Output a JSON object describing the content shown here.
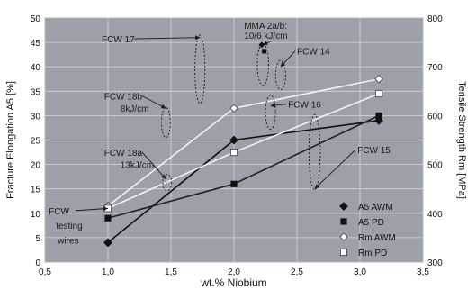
{
  "chart_data": {
    "type": "line",
    "xlabel": "wt.% Niobium",
    "ylabel": "Fracture Elongation A5 [%]",
    "y2label": "Tensile Strength Rm [MPa]",
    "xlim": [
      0.5,
      3.5
    ],
    "ylim": [
      0,
      50
    ],
    "y2lim": [
      300,
      800
    ],
    "x_ticks": [
      "0,5",
      "1,0",
      "1,5",
      "2,0",
      "2,5",
      "3,0",
      "3,5"
    ],
    "x_tick_values": [
      0.5,
      1.0,
      1.5,
      2.0,
      2.5,
      3.0,
      3.5
    ],
    "y_ticks": [
      "0",
      "5",
      "10",
      "15",
      "20",
      "25",
      "30",
      "35",
      "40",
      "45",
      "50"
    ],
    "y_tick_values": [
      0,
      5,
      10,
      15,
      20,
      25,
      30,
      35,
      40,
      45,
      50
    ],
    "y2_ticks": [
      "300",
      "400",
      "500",
      "600",
      "700",
      "800"
    ],
    "y2_tick_values": [
      300,
      400,
      500,
      600,
      700,
      800
    ],
    "grid": true,
    "legend_position": "bottom-right",
    "colors": {
      "plot_bg": "#9da0a8",
      "grid": "#d4d6da",
      "awm_line": "#111111",
      "pd_line": "#222222",
      "rm_line": "#f2f2f2",
      "annotation": "#1a1a1a"
    },
    "series": [
      {
        "name": "A5  AWM",
        "axis": "left",
        "marker": "diamond-filled",
        "x": [
          1.0,
          2.0,
          3.15
        ],
        "y": [
          4,
          25,
          29
        ]
      },
      {
        "name": "A5  PD",
        "axis": "left",
        "marker": "square-filled",
        "x": [
          1.0,
          2.0,
          3.15
        ],
        "y": [
          9,
          16,
          30
        ]
      },
      {
        "name": "Rm  AWM",
        "axis": "right",
        "marker": "diamond-open",
        "x": [
          1.0,
          2.0,
          3.15
        ],
        "y": [
          415,
          615,
          675
        ]
      },
      {
        "name": "Rm  PD",
        "axis": "right",
        "marker": "square-open",
        "x": [
          1.0,
          2.0,
          3.15
        ],
        "y": [
          410,
          525,
          645
        ]
      }
    ],
    "mma_markers": [
      {
        "x": 2.22,
        "y": 44.5,
        "shape": "diamond"
      },
      {
        "x": 2.24,
        "y": 43.2,
        "shape": "square"
      }
    ],
    "annotations": [
      {
        "id": "fcw-17",
        "text": "FCW 17",
        "x": 0.95,
        "y": 45.0,
        "ellipse": {
          "cx": 1.73,
          "cy": 39.5,
          "rx": 0.04,
          "ry": 7.0
        },
        "arrow_to": [
          1.73,
          46
        ]
      },
      {
        "id": "mma",
        "text": "MMA 2a/b:",
        "text2": "10/6 kJ/cm",
        "x": 2.08,
        "y": 47.8,
        "y2": 45.8,
        "ellipse": {
          "cx": 2.23,
          "cy": 40.5,
          "rx": 0.045,
          "ry": 4.3
        },
        "arrow_to": [
          2.23,
          44.5
        ]
      },
      {
        "id": "fcw-14",
        "text": "FCW 14",
        "x": 2.5,
        "y": 42.5,
        "ellipse": {
          "cx": 2.37,
          "cy": 38.3,
          "rx": 0.04,
          "ry": 3.0
        },
        "arrow_to": [
          2.37,
          40
        ]
      },
      {
        "id": "fcw-18b",
        "text": "FCW 18b",
        "text2": "8kJ/cm",
        "x": 0.97,
        "y": 33.3,
        "y2": 30.8,
        "ellipse": {
          "cx": 1.46,
          "cy": 28.6,
          "rx": 0.035,
          "ry": 3.1
        },
        "arrow_to": [
          1.46,
          31.5
        ]
      },
      {
        "id": "fcw-16",
        "text": "FCW 16",
        "x": 2.43,
        "y": 31.6,
        "ellipse": {
          "cx": 2.29,
          "cy": 30.7,
          "rx": 0.04,
          "ry": 3.5
        },
        "arrow_to": [
          2.29,
          32
        ]
      },
      {
        "id": "fcw-18a",
        "text": "FCW 18a",
        "text2": "13kJ/cm",
        "x": 0.97,
        "y": 21.8,
        "y2": 19.3,
        "ellipse": {
          "cx": 1.47,
          "cy": 16.3,
          "rx": 0.035,
          "ry": 1.7
        },
        "arrow_to": [
          1.46,
          17
        ]
      },
      {
        "id": "fcw-15",
        "text": "FCW 15",
        "x": 2.98,
        "y": 22.3,
        "ellipse": {
          "cx": 2.64,
          "cy": 22.5,
          "rx": 0.045,
          "ry": 7.7
        },
        "arrow_to": [
          2.64,
          15
        ]
      },
      {
        "id": "fcw-testing",
        "text": "FCW",
        "text2": "testing",
        "text3": "wires",
        "x": 0.53,
        "y": 9.8,
        "y2": 6.8,
        "y3": 3.8,
        "arrow_to": [
          1.0,
          11
        ]
      }
    ]
  }
}
